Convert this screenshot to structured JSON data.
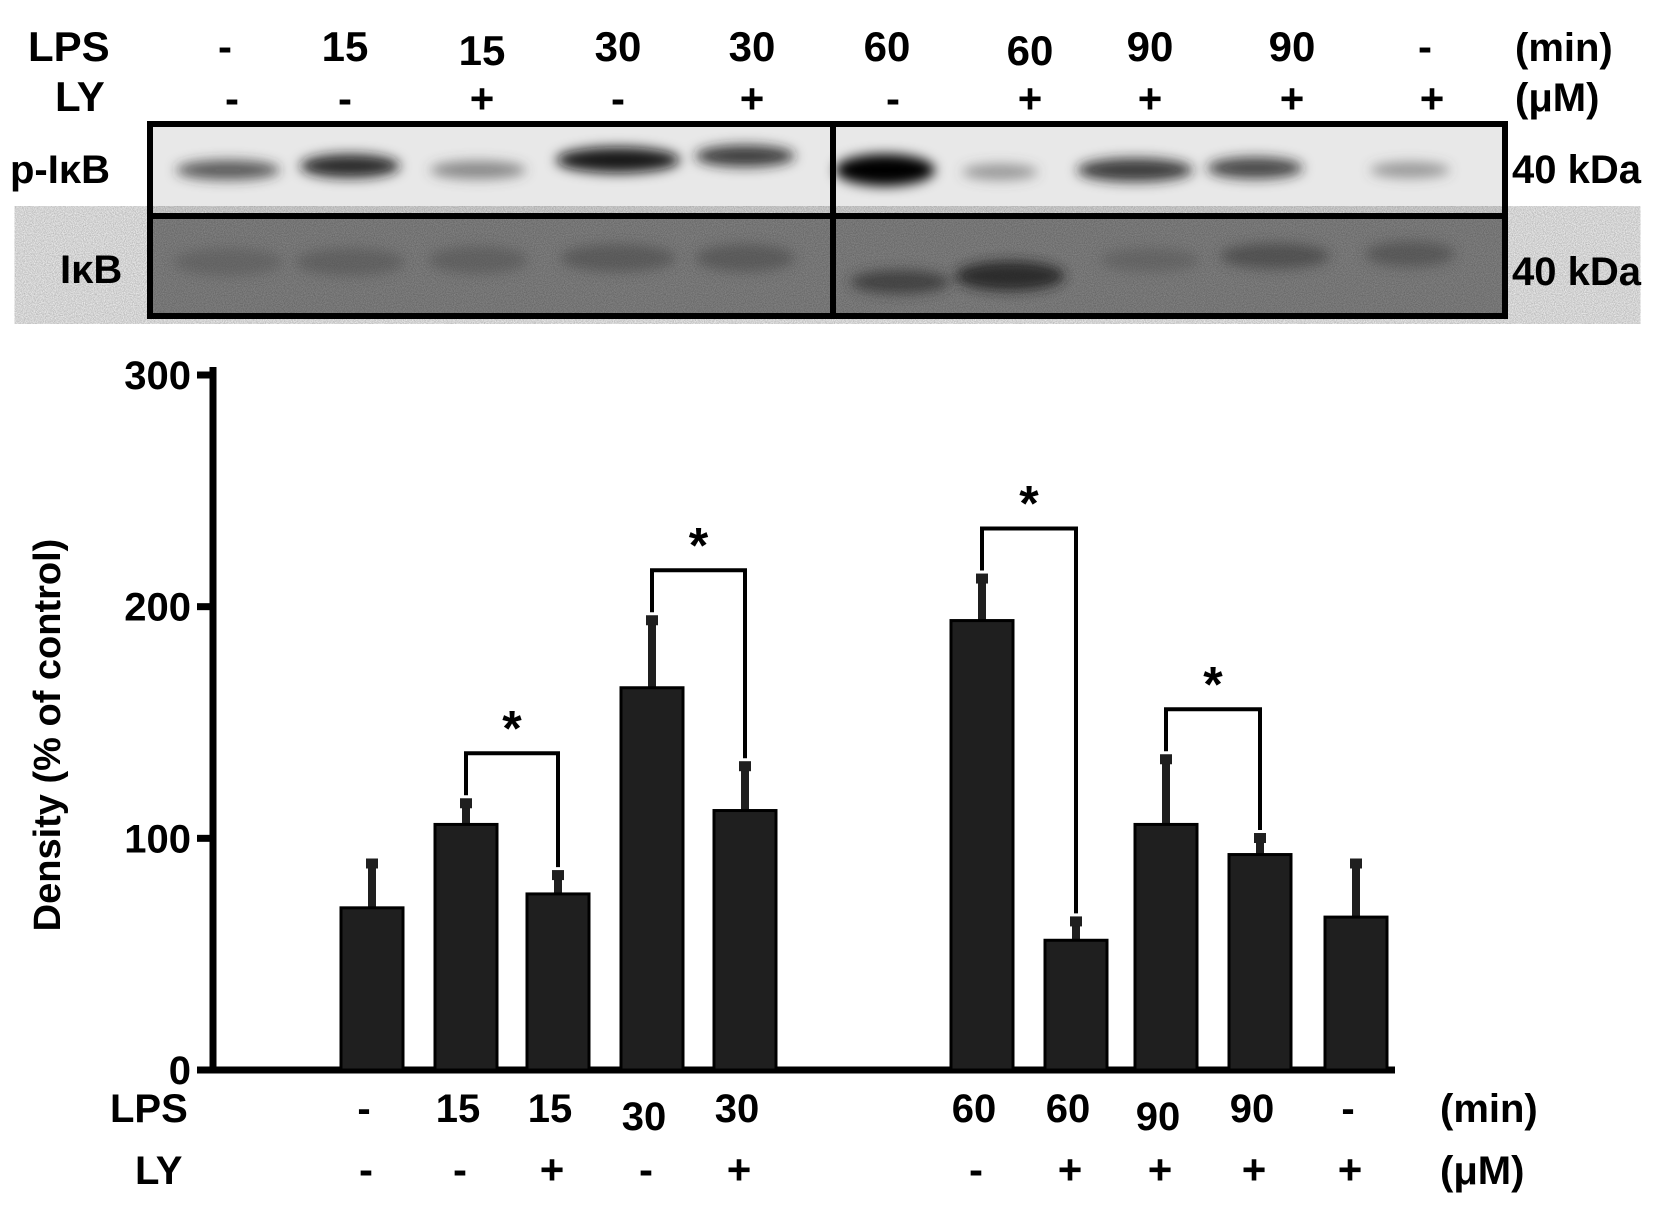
{
  "blot": {
    "conditions": {
      "lps_label": "LPS",
      "ly_label": "LY",
      "lps_unit": "(min)",
      "ly_unit": "(μM)",
      "lps": [
        "-",
        "15",
        "15",
        "30",
        "30",
        "60",
        "60",
        "90",
        "90",
        "-"
      ],
      "ly": [
        "-",
        "-",
        "+",
        "-",
        "+",
        "-",
        "+",
        "+",
        "+",
        "+"
      ]
    },
    "bands": [
      {
        "name": "p-IκB",
        "mw": "40 kDa"
      },
      {
        "name": "IκB",
        "mw": "40 kDa"
      }
    ]
  },
  "chart_data": {
    "type": "bar",
    "ylabel": "Density (% of control)",
    "ylim": [
      0,
      300
    ],
    "yticks": [
      "0",
      "100",
      "200",
      "300"
    ],
    "categories": [
      {
        "lps": "-",
        "ly": "-"
      },
      {
        "lps": "15",
        "ly": "-"
      },
      {
        "lps": "15",
        "ly": "+"
      },
      {
        "lps": "30",
        "ly": "-"
      },
      {
        "lps": "30",
        "ly": "+"
      },
      {
        "lps": "60",
        "ly": "-"
      },
      {
        "lps": "60",
        "ly": "+"
      },
      {
        "lps": "90",
        "ly": "+"
      },
      {
        "lps": "90",
        "ly": "+"
      },
      {
        "lps": "-",
        "ly": "+"
      }
    ],
    "values": [
      70,
      106,
      76,
      165,
      112,
      194,
      56,
      106,
      93,
      66
    ],
    "errors": [
      20,
      10,
      9,
      30,
      20,
      19,
      9,
      29,
      8,
      24
    ],
    "x_labels": {
      "lps_label": "LPS",
      "ly_label": "LY",
      "lps_unit": "(min)",
      "ly_unit": "(μM)"
    },
    "bar_color": "#1f1f1f",
    "significance": [
      {
        "from": 1,
        "to": 2,
        "label": "*"
      },
      {
        "from": 3,
        "to": 4,
        "label": "*"
      },
      {
        "from": 5,
        "to": 6,
        "label": "*"
      },
      {
        "from": 7,
        "to": 8,
        "label": "*"
      }
    ]
  }
}
